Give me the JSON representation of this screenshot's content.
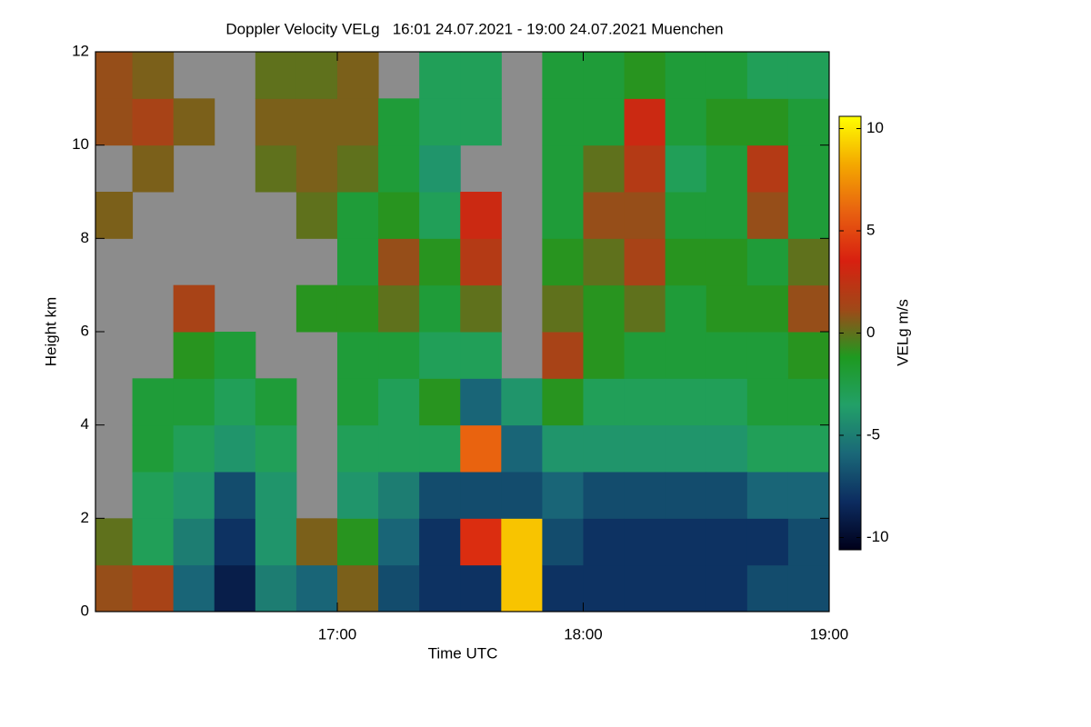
{
  "chart_data": {
    "type": "heatmap",
    "title": "Doppler Velocity VELg   16:01 24.07.2021 - 19:00 24.07.2021 Muenchen",
    "x_label": "Time UTC",
    "y_label": "Height km",
    "colorbar_label": "VELg m/s",
    "xlim": [
      16.0167,
      19
    ],
    "ylim": [
      0,
      12
    ],
    "clim": [
      -10.6,
      10.6
    ],
    "xticks": [
      {
        "value": 17,
        "label": "17:00"
      },
      {
        "value": 18,
        "label": "18:00"
      },
      {
        "value": 19,
        "label": "19:00"
      }
    ],
    "yticks": [
      0,
      2,
      4,
      6,
      8,
      10,
      12
    ],
    "cticks": [
      -10,
      -5,
      0,
      5,
      10
    ],
    "nodata_color": "#8c8c8c",
    "colorscale": [
      "#00001a",
      "#0c2c60",
      "#1a6878",
      "#22a068",
      "#1e9a20",
      "#a04818",
      "#d82010",
      "#e86010",
      "#f4a800",
      "#ffff00"
    ],
    "x_bins": [
      16.0167,
      16.1667,
      16.3333,
      16.5,
      16.6667,
      16.8333,
      17,
      17.1667,
      17.3333,
      17.5,
      17.6667,
      17.8333,
      18,
      18.1667,
      18.3333,
      18.5,
      18.6667,
      18.8333,
      19
    ],
    "y_bins": [
      0,
      1,
      2,
      3,
      4,
      5,
      6,
      7,
      8,
      9,
      10,
      11,
      12
    ],
    "values": [
      [
        1,
        0,
        null,
        null,
        null,
        null,
        null,
        null,
        0.5,
        null,
        1,
        1
      ],
      [
        1.5,
        -3,
        -3,
        -2,
        -2,
        null,
        null,
        null,
        null,
        0.5,
        1.5,
        0.5
      ],
      [
        -6,
        -5,
        -4,
        -3,
        -2,
        -1,
        1.5,
        null,
        null,
        null,
        0.5,
        null
      ],
      [
        -9,
        -8,
        -7,
        -4,
        -3,
        -2,
        null,
        null,
        null,
        null,
        null,
        null
      ],
      [
        -5,
        -4,
        -4,
        -3,
        -2,
        null,
        null,
        null,
        null,
        0,
        0.5,
        0
      ],
      [
        -6,
        0.5,
        null,
        null,
        null,
        null,
        -1,
        null,
        0,
        0.5,
        0.5,
        0
      ],
      [
        0.5,
        -1,
        -4,
        -3,
        -2,
        -2,
        -1,
        -2,
        -2,
        0,
        0.5,
        0.5
      ],
      [
        -7,
        -6,
        -5,
        -3,
        -3,
        -2,
        0,
        1,
        -1,
        -2,
        -2,
        null
      ],
      [
        -8,
        -8,
        -7,
        -3,
        -1,
        -3,
        -2,
        -1,
        -3,
        -4,
        -3,
        -3
      ],
      [
        -8,
        4,
        -7,
        6,
        -6,
        -3,
        0,
        2,
        3,
        null,
        -3,
        -3
      ],
      [
        9,
        9,
        -7,
        -6,
        -4,
        null,
        null,
        null,
        null,
        null,
        null,
        null
      ],
      [
        -8,
        -7,
        -6,
        -4,
        -1,
        1.5,
        0,
        -1,
        -2,
        -2,
        -2,
        -2
      ],
      [
        -8,
        -8,
        -7,
        -4,
        -3,
        -1,
        -1,
        0,
        1,
        0,
        -2,
        -2
      ],
      [
        -8,
        -8,
        -7,
        -4,
        -3,
        -2,
        0,
        1.5,
        1,
        2,
        3,
        -1
      ],
      [
        -8,
        -8,
        -7,
        -4,
        -3,
        -2,
        -2,
        -1,
        -2,
        -3,
        -2,
        -2
      ],
      [
        -8,
        -8,
        -7,
        -4,
        -3,
        -2,
        -1,
        -1,
        -2,
        -2,
        -1,
        -2
      ],
      [
        -7,
        -8,
        -6,
        -3,
        -2,
        -2,
        -1,
        -2,
        1,
        2,
        -1,
        -3
      ],
      [
        -7,
        -7,
        -6,
        -3,
        -2,
        -1,
        1,
        0,
        -2,
        -2,
        -2,
        -3
      ]
    ]
  }
}
